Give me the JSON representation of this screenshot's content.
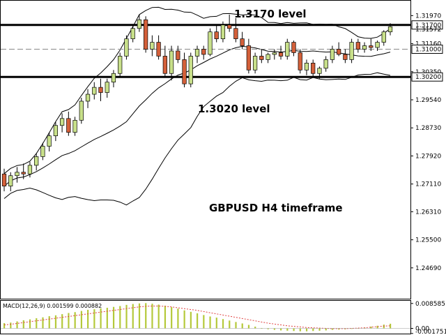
{
  "chart_data": {
    "type": "candlestick",
    "title": "GBPUSD H4 timeframe",
    "annotations": [
      "1.3170 level",
      "1.3020 level",
      "GBPUSD H4 timeframe"
    ],
    "price_ylim": [
      1.238,
      1.324
    ],
    "price_ticks": [
      "1.31970",
      "1.31160",
      "1.30350",
      "1.29540",
      "1.28730",
      "1.27920",
      "1.27110",
      "1.26310",
      "1.25500",
      "1.24690"
    ],
    "levels": [
      {
        "label": "1.31700",
        "value": 1.317,
        "style": "solid-thick"
      },
      {
        "label": "1.31572",
        "value": 1.31572,
        "style": "current"
      },
      {
        "label": "1.31000",
        "value": 1.31,
        "style": "dashed"
      },
      {
        "label": "1.30200",
        "value": 1.302,
        "style": "solid-thick"
      }
    ],
    "candles": [
      [
        1.274,
        1.2755,
        1.269,
        1.2705
      ],
      [
        1.2705,
        1.2745,
        1.269,
        1.2735
      ],
      [
        1.2735,
        1.276,
        1.2715,
        1.2745
      ],
      [
        1.2745,
        1.277,
        1.2725,
        1.274
      ],
      [
        1.274,
        1.2775,
        1.273,
        1.2765
      ],
      [
        1.2765,
        1.28,
        1.275,
        1.279
      ],
      [
        1.279,
        1.283,
        1.278,
        1.282
      ],
      [
        1.282,
        1.286,
        1.2805,
        1.285
      ],
      [
        1.285,
        1.289,
        1.2835,
        1.288
      ],
      [
        1.288,
        1.2915,
        1.286,
        1.29
      ],
      [
        1.29,
        1.292,
        1.285,
        1.286
      ],
      [
        1.286,
        1.2905,
        1.285,
        1.2895
      ],
      [
        1.2895,
        1.296,
        1.2885,
        1.295
      ],
      [
        1.295,
        1.2985,
        1.293,
        1.297
      ],
      [
        1.297,
        1.3005,
        1.2955,
        1.299
      ],
      [
        1.299,
        1.3015,
        1.295,
        1.2975
      ],
      [
        1.2975,
        1.3015,
        1.296,
        1.3005
      ],
      [
        1.3005,
        1.304,
        1.299,
        1.303
      ],
      [
        1.303,
        1.309,
        1.302,
        1.308
      ],
      [
        1.308,
        1.314,
        1.307,
        1.313
      ],
      [
        1.313,
        1.317,
        1.312,
        1.316
      ],
      [
        1.316,
        1.32,
        1.315,
        1.3185
      ],
      [
        1.3185,
        1.3195,
        1.309,
        1.31
      ],
      [
        1.31,
        1.314,
        1.308,
        1.312
      ],
      [
        1.312,
        1.314,
        1.307,
        1.308
      ],
      [
        1.308,
        1.311,
        1.302,
        1.303
      ],
      [
        1.303,
        1.311,
        1.301,
        1.3095
      ],
      [
        1.3095,
        1.311,
        1.306,
        1.307
      ],
      [
        1.307,
        1.309,
        1.299,
        1.3
      ],
      [
        1.3,
        1.309,
        1.299,
        1.308
      ],
      [
        1.308,
        1.311,
        1.306,
        1.31
      ],
      [
        1.31,
        1.311,
        1.307,
        1.3085
      ],
      [
        1.3085,
        1.316,
        1.308,
        1.315
      ],
      [
        1.315,
        1.317,
        1.312,
        1.313
      ],
      [
        1.313,
        1.318,
        1.312,
        1.317
      ],
      [
        1.317,
        1.32,
        1.315,
        1.316
      ],
      [
        1.316,
        1.319,
        1.312,
        1.313
      ],
      [
        1.313,
        1.315,
        1.31,
        1.311
      ],
      [
        1.311,
        1.313,
        1.303,
        1.304
      ],
      [
        1.304,
        1.309,
        1.303,
        1.308
      ],
      [
        1.308,
        1.31,
        1.306,
        1.307
      ],
      [
        1.307,
        1.309,
        1.306,
        1.3085
      ],
      [
        1.3085,
        1.31,
        1.307,
        1.309
      ],
      [
        1.309,
        1.311,
        1.307,
        1.308
      ],
      [
        1.308,
        1.313,
        1.307,
        1.312
      ],
      [
        1.312,
        1.3125,
        1.308,
        1.309
      ],
      [
        1.309,
        1.31,
        1.303,
        1.304
      ],
      [
        1.304,
        1.307,
        1.3025,
        1.306
      ],
      [
        1.306,
        1.307,
        1.302,
        1.303
      ],
      [
        1.303,
        1.305,
        1.3015,
        1.3045
      ],
      [
        1.3045,
        1.308,
        1.3035,
        1.307
      ],
      [
        1.307,
        1.311,
        1.306,
        1.31
      ],
      [
        1.31,
        1.312,
        1.308,
        1.3085
      ],
      [
        1.3085,
        1.31,
        1.306,
        1.307
      ],
      [
        1.307,
        1.313,
        1.306,
        1.312
      ],
      [
        1.312,
        1.313,
        1.309,
        1.31
      ],
      [
        1.31,
        1.312,
        1.309,
        1.311
      ],
      [
        1.311,
        1.313,
        1.3095,
        1.3105
      ],
      [
        1.3105,
        1.3125,
        1.3095,
        1.312
      ],
      [
        1.312,
        1.3155,
        1.311,
        1.315
      ],
      [
        1.315,
        1.3175,
        1.314,
        1.3165
      ]
    ],
    "macd": {
      "label": "MACD(12,26,9) 0.001599 0.000882",
      "ylim": [
        -0.0018,
        0.0095
      ],
      "ticks": [
        "0.008585",
        "0.00",
        "-0.001751"
      ],
      "histogram": [
        0.0018,
        0.002,
        0.0024,
        0.0028,
        0.0031,
        0.0035,
        0.0038,
        0.0042,
        0.0045,
        0.0049,
        0.0053,
        0.0056,
        0.006,
        0.0064,
        0.0066,
        0.0069,
        0.0071,
        0.0074,
        0.0077,
        0.0081,
        0.0084,
        0.0086,
        0.0087,
        0.0085,
        0.0082,
        0.0078,
        0.0073,
        0.0068,
        0.0062,
        0.0057,
        0.0052,
        0.0046,
        0.0041,
        0.0037,
        0.0032,
        0.0027,
        0.0022,
        0.0017,
        0.0012,
        0.0006,
        0.0001,
        -0.0003,
        -0.0005,
        -0.0007,
        -0.0008,
        -0.0009,
        -0.001,
        -0.001,
        -0.0009,
        -0.0008,
        -0.0007,
        -0.0005,
        -0.0004,
        -0.0003,
        -0.0001,
        0.0001,
        0.0003,
        0.0006,
        0.0009,
        0.0013,
        0.0016
      ],
      "signal": [
        0.0012,
        0.0014,
        0.0017,
        0.002,
        0.0023,
        0.0026,
        0.0029,
        0.0032,
        0.0035,
        0.0038,
        0.0041,
        0.0044,
        0.0047,
        0.005,
        0.0053,
        0.0056,
        0.0059,
        0.0062,
        0.0065,
        0.0068,
        0.0071,
        0.0074,
        0.0076,
        0.0077,
        0.0077,
        0.0076,
        0.0074,
        0.0071,
        0.0068,
        0.0065,
        0.0062,
        0.0058,
        0.0054,
        0.005,
        0.0046,
        0.0042,
        0.0038,
        0.0034,
        0.003,
        0.0026,
        0.0022,
        0.0018,
        0.0015,
        0.0012,
        0.0009,
        0.0007,
        0.0005,
        0.0003,
        0.0002,
        0.0001,
        0.0,
        -0.0001,
        -0.0001,
        -0.0001,
        0.0,
        0.0001,
        0.0002,
        0.0004,
        0.0006,
        0.0008,
        0.0009
      ]
    }
  }
}
